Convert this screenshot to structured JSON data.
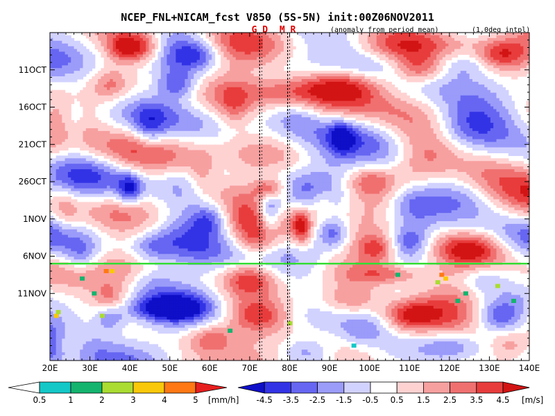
{
  "chart_data": {
    "type": "heatmap",
    "title": "NCEP_FNL+NICAM_fcst V850 (5S-5N) init:00Z06NOV2011",
    "subtitle": "(anomaly from period mean)",
    "note": "(1.0deg intpl)",
    "markers": [
      {
        "label": "G D",
        "lon": 72.5
      },
      {
        "label": "M R",
        "lon": 79.5
      }
    ],
    "x_axis": {
      "label": "",
      "range": [
        20,
        140
      ],
      "ticks": [
        20,
        30,
        40,
        50,
        60,
        70,
        80,
        90,
        100,
        110,
        120,
        130,
        140
      ],
      "tick_labels": [
        "20E",
        "30E",
        "40E",
        "50E",
        "60E",
        "70E",
        "80E",
        "90E",
        "100E",
        "110E",
        "120E",
        "130E",
        "140E"
      ]
    },
    "y_axis": {
      "label": "",
      "range_day_index": [
        0,
        44
      ],
      "reversed": true,
      "ticks": [
        5,
        10,
        15,
        20,
        25,
        30,
        35
      ],
      "tick_labels": [
        "11OCT",
        "16OCT",
        "21OCT",
        "26OCT",
        "1NOV",
        "6NOV",
        "11NOV"
      ]
    },
    "init_line_day_index": 31,
    "v850_colorbar": {
      "levels": [
        "-4.5",
        "-3.5",
        "-2.5",
        "-1.5",
        "-0.5",
        "0.5",
        "1.5",
        "2.5",
        "3.5",
        "4.5"
      ],
      "colors": [
        "#0f0fc8",
        "#3333e6",
        "#6666f2",
        "#9b9bfa",
        "#d2d2ff",
        "#ffffff",
        "#ffd2d2",
        "#f7a0a0",
        "#f07070",
        "#e83c3c",
        "#d21414"
      ],
      "units": "[m/s]"
    },
    "rain_colorbar": {
      "levels": [
        "0.5",
        "1",
        "2",
        "3",
        "4",
        "5"
      ],
      "colors": [
        "#ffffff",
        "#14c8c8",
        "#14b46e",
        "#aadc32",
        "#fac80a",
        "#ff7814",
        "#e61e1e"
      ],
      "units": "[mm/h]"
    },
    "features": [
      {
        "lon": 43,
        "day": 2,
        "v": 4.5,
        "w": 5,
        "h": 2
      },
      {
        "lon": 38,
        "day": 2,
        "v": 3,
        "w": 4,
        "h": 2
      },
      {
        "lon": 57,
        "day": 3,
        "v": -3,
        "w": 6,
        "h": 2
      },
      {
        "lon": 105,
        "day": 2,
        "v": 2,
        "w": 9,
        "h": 2
      },
      {
        "lon": 123,
        "day": 4,
        "v": -3,
        "w": 8,
        "h": 2
      },
      {
        "lon": 133,
        "day": 3,
        "v": 3,
        "w": 6,
        "h": 2
      },
      {
        "lon": 112,
        "day": 5,
        "v": 4,
        "w": 7,
        "h": 2
      },
      {
        "lon": 96,
        "day": 7,
        "v": 3,
        "w": 10,
        "h": 2
      },
      {
        "lon": 80,
        "day": 8,
        "v": 2.5,
        "w": 12,
        "h": 2
      },
      {
        "lon": 52,
        "day": 7,
        "v": -3.5,
        "w": 5,
        "h": 2
      },
      {
        "lon": 35,
        "day": 7,
        "v": 2,
        "w": 4,
        "h": 2
      },
      {
        "lon": 66,
        "day": 10,
        "v": 2,
        "w": 4,
        "h": 3
      },
      {
        "lon": 82,
        "day": 11,
        "v": -2,
        "w": 7,
        "h": 3
      },
      {
        "lon": 93,
        "day": 14,
        "v": -3.5,
        "w": 3,
        "h": 2
      },
      {
        "lon": 45,
        "day": 13,
        "v": -2.5,
        "w": 4,
        "h": 3
      },
      {
        "lon": 123,
        "day": 13,
        "v": -2,
        "w": 8,
        "h": 3
      },
      {
        "lon": 105,
        "day": 17,
        "v": -1.5,
        "w": 6,
        "h": 3
      },
      {
        "lon": 130,
        "day": 19,
        "v": 2,
        "w": 8,
        "h": 3
      },
      {
        "lon": 58,
        "day": 19,
        "v": 2.5,
        "w": 4,
        "h": 3
      },
      {
        "lon": 40,
        "day": 21,
        "v": -4,
        "w": 3,
        "h": 2
      },
      {
        "lon": 75,
        "day": 21,
        "v": 4.5,
        "w": 4,
        "h": 1.5
      },
      {
        "lon": 64,
        "day": 21,
        "v": 2,
        "w": 7,
        "h": 2
      },
      {
        "lon": 100,
        "day": 20,
        "v": 2.5,
        "w": 6,
        "h": 2
      },
      {
        "lon": 110,
        "day": 23,
        "v": -2.5,
        "w": 6,
        "h": 3
      },
      {
        "lon": 75,
        "day": 24,
        "v": -4.5,
        "w": 3,
        "h": 3
      },
      {
        "lon": 60,
        "day": 25,
        "v": -3.5,
        "w": 5,
        "h": 2
      },
      {
        "lon": 83,
        "day": 26,
        "v": 4.5,
        "w": 2.5,
        "h": 2.5
      },
      {
        "lon": 88,
        "day": 23,
        "v": 2,
        "w": 3,
        "h": 2
      },
      {
        "lon": 91,
        "day": 27,
        "v": -3.5,
        "w": 4,
        "h": 2
      },
      {
        "lon": 72,
        "day": 28,
        "v": 3,
        "w": 6,
        "h": 2
      },
      {
        "lon": 110,
        "day": 28,
        "v": -3,
        "w": 5,
        "h": 2
      },
      {
        "lon": 102,
        "day": 29,
        "v": 3.5,
        "w": 5,
        "h": 2
      },
      {
        "lon": 125,
        "day": 29,
        "v": 3,
        "w": 9,
        "h": 2
      },
      {
        "lon": 45,
        "day": 29,
        "v": -2.5,
        "w": 6,
        "h": 2
      },
      {
        "lon": 28,
        "day": 30,
        "v": -2,
        "w": 4,
        "h": 2
      },
      {
        "lon": 70,
        "day": 33,
        "v": 3,
        "w": 6,
        "h": 2
      },
      {
        "lon": 45,
        "day": 33,
        "v": -2,
        "w": 6,
        "h": 2
      },
      {
        "lon": 105,
        "day": 32.5,
        "v": 3.5,
        "w": 10,
        "h": 1.5
      },
      {
        "lon": 128,
        "day": 33,
        "v": -2.5,
        "w": 6,
        "h": 2
      },
      {
        "lon": 35,
        "day": 36,
        "v": 3,
        "w": 4,
        "h": 2
      },
      {
        "lon": 50,
        "day": 37,
        "v": -4.5,
        "w": 8,
        "h": 1.5
      },
      {
        "lon": 35,
        "day": 38,
        "v": -3.5,
        "w": 4,
        "h": 2
      },
      {
        "lon": 72,
        "day": 38,
        "v": 3,
        "w": 7,
        "h": 2
      },
      {
        "lon": 95,
        "day": 36,
        "v": 3,
        "w": 8,
        "h": 2
      },
      {
        "lon": 110,
        "day": 38,
        "v": 3.5,
        "w": 6,
        "h": 2
      },
      {
        "lon": 132,
        "day": 38,
        "v": -3,
        "w": 6,
        "h": 2
      },
      {
        "lon": 98,
        "day": 40,
        "v": -2,
        "w": 6,
        "h": 2
      },
      {
        "lon": 60,
        "day": 41,
        "v": 3,
        "w": 6,
        "h": 2
      },
      {
        "lon": 25,
        "day": 42,
        "v": 2.5,
        "w": 4,
        "h": 2
      },
      {
        "lon": 84,
        "day": 43,
        "v": -3,
        "w": 7,
        "h": 2
      },
      {
        "lon": 120,
        "day": 42,
        "v": -2,
        "w": 6,
        "h": 2
      },
      {
        "lon": 135,
        "day": 42,
        "v": 2.5,
        "w": 5,
        "h": 2
      },
      {
        "lon": 26,
        "day": 12,
        "v": -1.5,
        "w": 3,
        "h": 4
      },
      {
        "lon": 24,
        "day": 24,
        "v": 1.5,
        "w": 3,
        "h": 3
      }
    ],
    "rain_spots": [
      {
        "lon": 34,
        "day": 32,
        "level": 5
      },
      {
        "lon": 35.5,
        "day": 32,
        "level": 4
      },
      {
        "lon": 28,
        "day": 33,
        "level": 2
      },
      {
        "lon": 21.5,
        "day": 38,
        "level": 4
      },
      {
        "lon": 22,
        "day": 37.5,
        "level": 3
      },
      {
        "lon": 31,
        "day": 35,
        "level": 2
      },
      {
        "lon": 33,
        "day": 38,
        "level": 3
      },
      {
        "lon": 65,
        "day": 40,
        "level": 2
      },
      {
        "lon": 80,
        "day": 39,
        "level": 3
      },
      {
        "lon": 96,
        "day": 42,
        "level": 1
      },
      {
        "lon": 107,
        "day": 32.5,
        "level": 2
      },
      {
        "lon": 118,
        "day": 32.5,
        "level": 5
      },
      {
        "lon": 119,
        "day": 33,
        "level": 4
      },
      {
        "lon": 117,
        "day": 33.5,
        "level": 3
      },
      {
        "lon": 124,
        "day": 35,
        "level": 2
      },
      {
        "lon": 132,
        "day": 34,
        "level": 3
      },
      {
        "lon": 136,
        "day": 36,
        "level": 2
      },
      {
        "lon": 122,
        "day": 36,
        "level": 2
      }
    ]
  }
}
